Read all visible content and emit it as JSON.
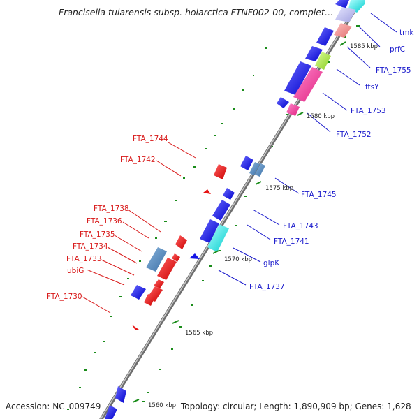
{
  "title": "Francisella tularensis subsp. holarctica FTNF002-00, complet…",
  "footer": {
    "accession": "Accession: NC_009749",
    "topology": "Topology: circular; Length: 1,890,909 bp; Genes: 1,628"
  },
  "scale_ticks": [
    {
      "label": "1585 kbp"
    },
    {
      "label": "1580 kbp"
    },
    {
      "label": "1575 kbp"
    },
    {
      "label": "1570 kbp"
    },
    {
      "label": "1565 kbp"
    },
    {
      "label": "1560 kbp"
    }
  ],
  "gene_labels_right": [
    "tmk",
    "prfC",
    "FTA_1755",
    "ftsY",
    "FTA_1753",
    "FTA_1752",
    "FTA_1745",
    "FTA_1743",
    "FTA_1741",
    "glpK",
    "FTA_1737"
  ],
  "gene_labels_left": [
    "FTA_1744",
    "FTA_1742",
    "FTA_1738",
    "FTA_1736",
    "FTA_1735",
    "FTA_1734",
    "FTA_1733",
    "ubiG",
    "FTA_1730"
  ],
  "colors": {
    "forward_strand": "#1414e6",
    "reverse_strand": "#e61414",
    "backbone": "#8c8c8c",
    "gc_dots": "#1a8c1a",
    "right_label": "#1a1acc",
    "left_label": "#d81818"
  }
}
